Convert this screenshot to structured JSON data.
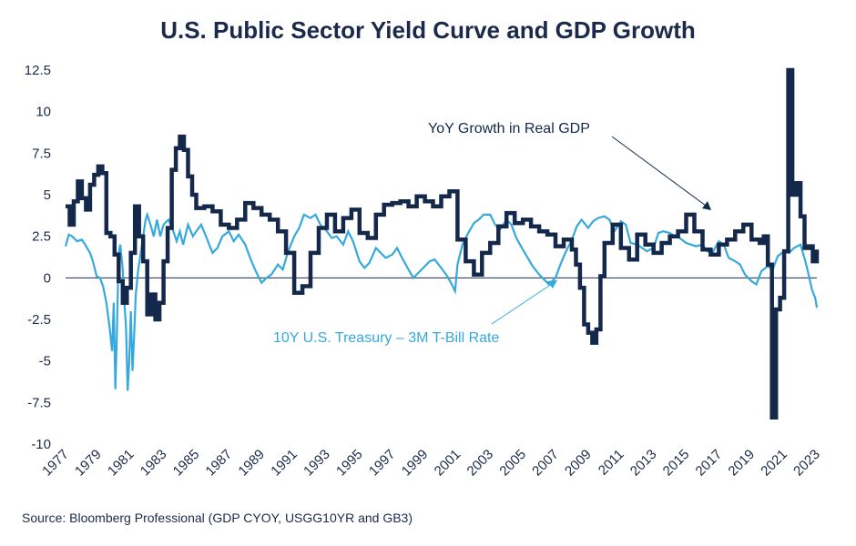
{
  "title": "U.S. Public Sector Yield Curve and GDP Growth",
  "source": "Source: Bloomberg Professional (GDP CYOY, USGG10YR and GB3)",
  "colors": {
    "gdp": "#14284b",
    "spread": "#35a9dc",
    "zero_line": "#1b2a4a",
    "text": "#1b2a4a"
  },
  "chart_data": {
    "type": "line",
    "title": "U.S. Public Sector Yield Curve and GDP Growth",
    "xlabel": "",
    "ylabel": "",
    "xlim": [
      1977,
      2023
    ],
    "ylim": [
      -10,
      12.5
    ],
    "y_ticks": [
      "12.5",
      "10",
      "7.5",
      "5",
      "2.5",
      "0",
      "-2.5",
      "-5",
      "-7.5",
      "-10"
    ],
    "x_ticks": [
      "1977",
      "1979",
      "1981",
      "1983",
      "1985",
      "1987",
      "1989",
      "1991",
      "1993",
      "1995",
      "1997",
      "1999",
      "2001",
      "2003",
      "2005",
      "2007",
      "2009",
      "2011",
      "2013",
      "2015",
      "2017",
      "2019",
      "2021",
      "2023"
    ],
    "grid": false,
    "annotations": [
      {
        "text": "YoY Growth in Real GDP",
        "series": "gdp"
      },
      {
        "text": "10Y U.S. Treasury – 3M T-Bill Rate",
        "series": "spread"
      }
    ],
    "series": [
      {
        "key": "gdp",
        "step": true,
        "x": [
          1977.0,
          1977.25,
          1977.5,
          1977.75,
          1978.0,
          1978.25,
          1978.5,
          1978.75,
          1979.0,
          1979.25,
          1979.5,
          1979.75,
          1980.0,
          1980.25,
          1980.5,
          1980.75,
          1981.0,
          1981.25,
          1981.5,
          1981.75,
          1982.0,
          1982.25,
          1982.5,
          1982.75,
          1983.0,
          1983.25,
          1983.5,
          1983.75,
          1984.0,
          1984.25,
          1984.5,
          1984.75,
          1985.0,
          1985.5,
          1986.0,
          1986.5,
          1987.0,
          1987.5,
          1988.0,
          1988.5,
          1989.0,
          1989.5,
          1990.0,
          1990.5,
          1991.0,
          1991.5,
          1992.0,
          1992.5,
          1993.0,
          1993.5,
          1994.0,
          1994.5,
          1995.0,
          1995.5,
          1996.0,
          1996.5,
          1997.0,
          1997.5,
          1998.0,
          1998.5,
          1999.0,
          1999.5,
          2000.0,
          2000.5,
          2001.0,
          2001.5,
          2002.0,
          2002.5,
          2003.0,
          2003.5,
          2004.0,
          2004.5,
          2005.0,
          2005.5,
          2006.0,
          2006.5,
          2007.0,
          2007.5,
          2008.0,
          2008.25,
          2008.5,
          2008.75,
          2009.0,
          2009.25,
          2009.5,
          2009.75,
          2010.0,
          2010.5,
          2011.0,
          2011.5,
          2012.0,
          2012.5,
          2013.0,
          2013.5,
          2014.0,
          2014.5,
          2015.0,
          2015.5,
          2016.0,
          2016.5,
          2017.0,
          2017.5,
          2018.0,
          2018.5,
          2019.0,
          2019.5,
          2019.75,
          2020.0,
          2020.25,
          2020.5,
          2020.75,
          2021.0,
          2021.25,
          2021.5,
          2021.75,
          2022.0,
          2022.25,
          2022.5,
          2022.75,
          2023.0
        ],
        "values": [
          4.3,
          3.2,
          4.6,
          5.8,
          4.8,
          4.1,
          5.6,
          6.2,
          6.7,
          6.3,
          2.7,
          2.5,
          1.4,
          -0.2,
          -1.5,
          -0.6,
          1.5,
          4.3,
          2.5,
          1.0,
          -2.2,
          -1.0,
          -2.5,
          -1.5,
          1.0,
          3.0,
          6.5,
          7.8,
          8.5,
          7.7,
          6.1,
          5.0,
          4.2,
          4.3,
          4.0,
          3.2,
          3.0,
          3.5,
          4.5,
          4.2,
          3.8,
          3.5,
          2.8,
          1.5,
          -0.9,
          -0.5,
          1.5,
          3.0,
          3.8,
          2.8,
          3.6,
          4.1,
          2.7,
          2.4,
          3.8,
          4.4,
          4.5,
          4.6,
          4.3,
          4.9,
          4.6,
          4.3,
          4.9,
          5.2,
          2.3,
          1.0,
          0.2,
          1.5,
          2.1,
          3.1,
          3.9,
          3.3,
          3.5,
          3.1,
          2.8,
          2.6,
          1.9,
          2.3,
          1.7,
          0.8,
          -0.6,
          -2.8,
          -3.3,
          -3.9,
          -3.1,
          0.1,
          2.1,
          3.2,
          1.8,
          1.1,
          2.6,
          2.0,
          1.5,
          2.1,
          2.5,
          2.8,
          3.8,
          2.8,
          1.7,
          1.4,
          2.0,
          2.3,
          2.8,
          3.2,
          2.3,
          2.1,
          2.5,
          0.8,
          -8.4,
          -1.9,
          -1.2,
          1.6,
          12.5,
          5.0,
          5.7,
          3.7,
          1.8,
          1.9,
          1.0,
          1.7
        ]
      },
      {
        "key": "spread",
        "step": false,
        "x": [
          1977.0,
          1977.2,
          1977.4,
          1977.7,
          1978.0,
          1978.2,
          1978.5,
          1978.7,
          1978.9,
          1979.1,
          1979.3,
          1979.5,
          1979.7,
          1979.85,
          1979.95,
          1980.05,
          1980.15,
          1980.25,
          1980.35,
          1980.5,
          1980.6,
          1980.7,
          1980.8,
          1980.9,
          1981.0,
          1981.1,
          1981.2,
          1981.3,
          1981.45,
          1981.6,
          1981.75,
          1981.9,
          1982.0,
          1982.2,
          1982.4,
          1982.6,
          1982.8,
          1983.0,
          1983.3,
          1983.6,
          1983.8,
          1984.0,
          1984.2,
          1984.5,
          1984.8,
          1985.0,
          1985.3,
          1985.6,
          1986.0,
          1986.3,
          1986.6,
          1987.0,
          1987.3,
          1987.6,
          1988.0,
          1988.3,
          1988.6,
          1989.0,
          1989.3,
          1989.6,
          1990.0,
          1990.3,
          1990.6,
          1991.0,
          1991.3,
          1991.6,
          1992.0,
          1992.3,
          1992.6,
          1993.0,
          1993.3,
          1993.6,
          1994.0,
          1994.3,
          1994.6,
          1995.0,
          1995.3,
          1995.6,
          1996.0,
          1996.3,
          1996.6,
          1997.0,
          1997.3,
          1997.6,
          1998.0,
          1998.3,
          1998.6,
          1999.0,
          1999.3,
          1999.6,
          2000.0,
          2000.3,
          2000.6,
          2000.85,
          2001.0,
          2001.3,
          2001.6,
          2002.0,
          2002.3,
          2002.6,
          2003.0,
          2003.3,
          2003.6,
          2004.0,
          2004.3,
          2004.6,
          2005.0,
          2005.3,
          2005.6,
          2006.0,
          2006.3,
          2006.6,
          2007.0,
          2007.3,
          2007.6,
          2008.0,
          2008.3,
          2008.6,
          2009.0,
          2009.3,
          2009.6,
          2010.0,
          2010.3,
          2010.6,
          2011.0,
          2011.3,
          2011.6,
          2012.0,
          2012.3,
          2012.6,
          2013.0,
          2013.3,
          2013.6,
          2014.0,
          2014.3,
          2014.6,
          2015.0,
          2015.3,
          2015.6,
          2016.0,
          2016.3,
          2016.6,
          2017.0,
          2017.3,
          2017.6,
          2018.0,
          2018.3,
          2018.6,
          2019.0,
          2019.3,
          2019.6,
          2020.0,
          2020.3,
          2020.6,
          2021.0,
          2021.3,
          2021.6,
          2022.0,
          2022.3,
          2022.5,
          2022.7,
          2022.9,
          2023.0
        ],
        "values": [
          1.9,
          2.6,
          2.5,
          2.2,
          2.3,
          2.0,
          1.5,
          0.9,
          0.1,
          0.0,
          -0.5,
          -1.5,
          -3.0,
          -4.4,
          -1.5,
          -6.7,
          -3.0,
          1.5,
          2.0,
          0.5,
          -1.5,
          -3.0,
          -6.8,
          -5.0,
          -2.0,
          -5.6,
          -3.5,
          -1.0,
          0.5,
          1.5,
          2.5,
          3.5,
          3.8,
          3.2,
          2.5,
          3.5,
          2.5,
          3.2,
          3.5,
          2.8,
          2.2,
          2.8,
          2.0,
          3.2,
          2.5,
          2.8,
          3.2,
          2.5,
          1.5,
          1.8,
          2.5,
          2.8,
          2.2,
          2.6,
          2.0,
          1.2,
          0.5,
          -0.3,
          0.0,
          0.2,
          0.8,
          0.5,
          1.5,
          2.5,
          3.0,
          3.8,
          3.6,
          3.8,
          3.2,
          2.8,
          2.4,
          2.5,
          2.0,
          2.8,
          2.2,
          1.0,
          0.6,
          0.9,
          1.8,
          1.5,
          1.2,
          1.4,
          1.8,
          1.2,
          0.5,
          0.0,
          0.3,
          0.7,
          1.0,
          1.1,
          0.6,
          0.2,
          -0.3,
          -0.8,
          0.8,
          2.0,
          2.6,
          3.3,
          3.5,
          3.8,
          3.8,
          3.2,
          2.9,
          3.5,
          3.2,
          2.4,
          1.7,
          1.2,
          0.7,
          0.2,
          -0.1,
          -0.4,
          0.0,
          0.8,
          1.5,
          2.3,
          3.1,
          3.5,
          3.0,
          3.4,
          3.6,
          3.7,
          3.5,
          2.8,
          3.4,
          3.2,
          2.1,
          2.0,
          1.8,
          1.6,
          1.8,
          2.7,
          2.8,
          2.7,
          2.5,
          2.4,
          2.1,
          2.0,
          1.9,
          2.0,
          1.6,
          1.5,
          2.2,
          2.0,
          1.2,
          1.0,
          0.8,
          0.2,
          -0.2,
          -0.4,
          0.4,
          0.7,
          0.5,
          1.3,
          1.6,
          1.5,
          1.8,
          2.0,
          1.0,
          0.2,
          -0.7,
          -1.2,
          -1.8
        ]
      }
    ]
  }
}
